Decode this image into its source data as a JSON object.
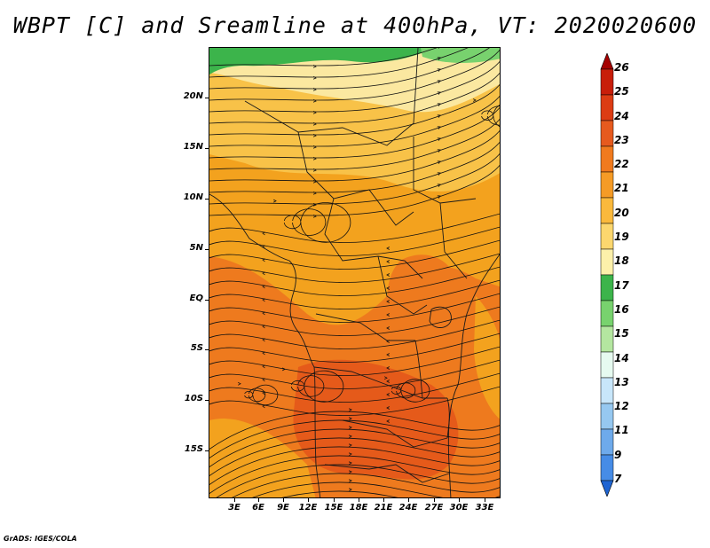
{
  "title": "WBPT [C] and Sreamline at 400hPa, VT: 2020020600",
  "footer": "GrADS: IGES/COLA",
  "map": {
    "lon_range": [
      -0.5,
      35.5
    ],
    "lat_range": [
      -20,
      24.5
    ],
    "lat_ticks": [
      "20N",
      "15N",
      "10N",
      "5N",
      "EQ",
      "5S",
      "10S",
      "15S"
    ],
    "lon_ticks": [
      "3E",
      "6E",
      "9E",
      "12E",
      "15E",
      "18E",
      "21E",
      "24E",
      "27E",
      "30E",
      "33E"
    ],
    "regions": [
      {
        "name": "green-north",
        "color": "#3cb44b"
      },
      {
        "name": "pale-yellow-north",
        "color": "#fbe8a0"
      },
      {
        "name": "light-orange",
        "color": "#f8c248"
      },
      {
        "name": "orange",
        "color": "#f3a21e"
      },
      {
        "name": "deep-orange",
        "color": "#ee7a1e"
      },
      {
        "name": "red-orange",
        "color": "#e55a1a"
      }
    ]
  },
  "colorbar": {
    "labels": [
      "26",
      "25",
      "24",
      "23",
      "22",
      "21",
      "20",
      "19",
      "18",
      "17",
      "16",
      "15",
      "14",
      "13",
      "12",
      "11",
      "9",
      "7"
    ],
    "colors": [
      "#a50000",
      "#c81e0a",
      "#dc3c14",
      "#e65a1e",
      "#f07a1e",
      "#f59b26",
      "#fab93c",
      "#fcd76e",
      "#fcf0aa",
      "#3cb44b",
      "#78d26e",
      "#b4e6a0",
      "#e6faf0",
      "#c8e6fa",
      "#96c8f0",
      "#6eaaeb",
      "#468ce6",
      "#286edc"
    ],
    "lower_arrow_color": "#1e64d2",
    "upper_arrow_color": "#a50000"
  }
}
